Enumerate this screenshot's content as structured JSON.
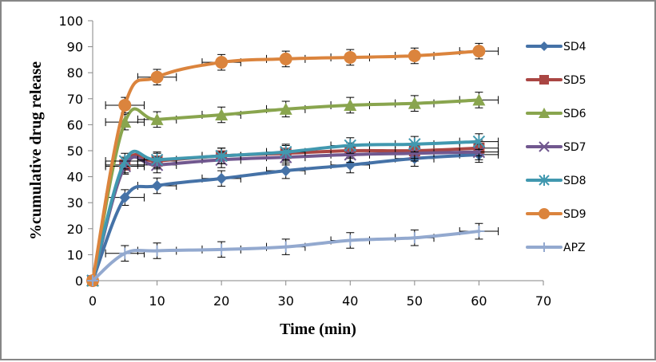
{
  "chart_data": {
    "type": "line",
    "title": "",
    "xlabel": "Time (min)",
    "ylabel": "%cumulative drug release",
    "xlim": [
      0,
      70
    ],
    "ylim": [
      0,
      100
    ],
    "xticks": [
      0,
      10,
      20,
      30,
      40,
      50,
      60,
      70
    ],
    "yticks": [
      0,
      10,
      20,
      30,
      40,
      50,
      60,
      70,
      80,
      90,
      100
    ],
    "grid": false,
    "legend_position": "right",
    "x": [
      0,
      5,
      10,
      20,
      30,
      40,
      50,
      60
    ],
    "series": [
      {
        "name": "SD4",
        "color": "#4572A7",
        "marker": "diamond",
        "values": [
          0,
          32,
          36.5,
          39.3,
          42.3,
          44.5,
          47,
          48.5
        ]
      },
      {
        "name": "SD5",
        "color": "#AA4643",
        "marker": "square",
        "values": [
          0,
          44.5,
          46,
          48,
          49,
          50,
          50,
          51
        ]
      },
      {
        "name": "SD6",
        "color": "#89A54E",
        "marker": "triangle",
        "values": [
          0,
          61,
          62,
          63.8,
          66,
          67.5,
          68.2,
          69.5
        ]
      },
      {
        "name": "SD7",
        "color": "#71588F",
        "marker": "x",
        "values": [
          0,
          44,
          44.5,
          46.5,
          47.5,
          48.5,
          49,
          49.5
        ]
      },
      {
        "name": "SD8",
        "color": "#4198AF",
        "marker": "star",
        "values": [
          0,
          46,
          46.5,
          48,
          49.5,
          52,
          52.5,
          53.5
        ]
      },
      {
        "name": "SD9",
        "color": "#DB843D",
        "marker": "circle",
        "values": [
          0,
          67.5,
          78.3,
          84,
          85.3,
          85.9,
          86.5,
          88.3
        ]
      },
      {
        "name": "APZ",
        "color": "#93A9CF",
        "marker": "plus",
        "values": [
          0,
          10.5,
          11.5,
          12,
          13,
          15.5,
          16.5,
          19
        ]
      }
    ],
    "error_bars": {
      "y_error": 3,
      "x_error_at_last_point": 3
    }
  }
}
